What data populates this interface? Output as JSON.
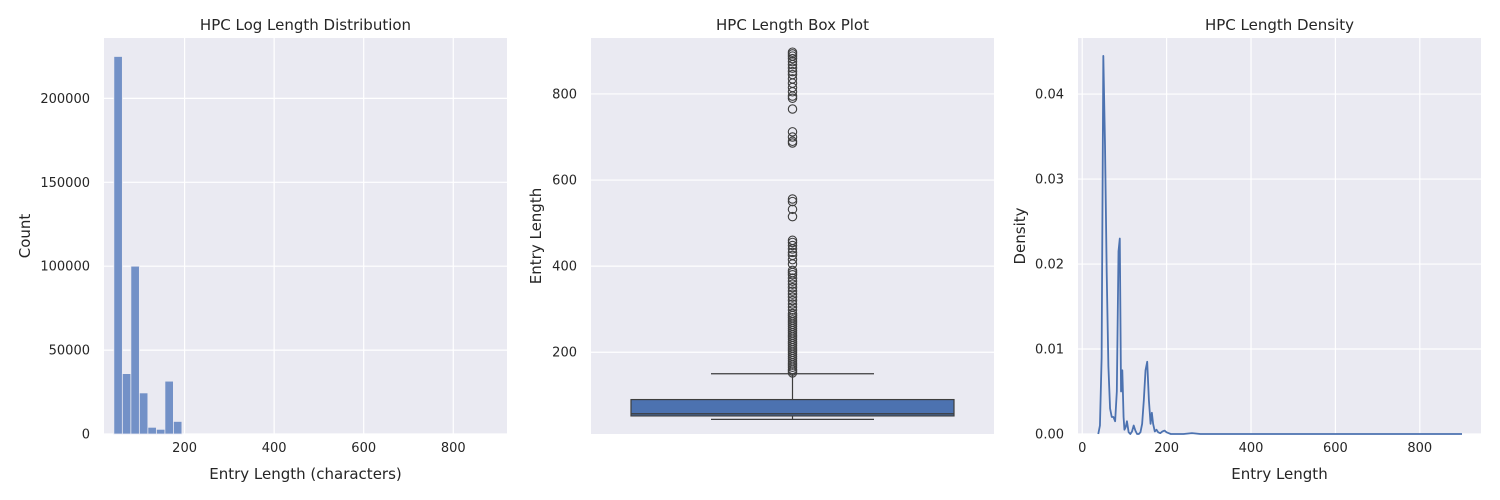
{
  "colors": {
    "figure_bg": "#ffffff",
    "axes_bg": "#eaeaf2",
    "grid": "#ffffff",
    "hist_bar": "#7391c7",
    "box_fill": "#4c72b0",
    "box_line": "#3d3d3d",
    "kde_line": "#4c72b0",
    "text": "#262626"
  },
  "chart_data": [
    {
      "type": "bar",
      "title": "HPC Log Length Distribution",
      "xlabel": "Entry Length (characters)",
      "ylabel": "Count",
      "xlim": [
        20,
        920
      ],
      "ylim": [
        0,
        236000
      ],
      "x_ticks": [
        200,
        400,
        600,
        800
      ],
      "y_ticks": [
        0,
        50000,
        100000,
        150000,
        200000
      ],
      "grid": true,
      "bins": [
        {
          "x0": 42,
          "x1": 61,
          "count": 225000
        },
        {
          "x0": 61,
          "x1": 80,
          "count": 36000
        },
        {
          "x0": 80,
          "x1": 99,
          "count": 100000
        },
        {
          "x0": 99,
          "x1": 118,
          "count": 24500
        },
        {
          "x0": 118,
          "x1": 137,
          "count": 4000
        },
        {
          "x0": 137,
          "x1": 156,
          "count": 2800
        },
        {
          "x0": 156,
          "x1": 175,
          "count": 31500
        },
        {
          "x0": 175,
          "x1": 194,
          "count": 7500
        }
      ]
    },
    {
      "type": "box",
      "title": "HPC Length Box Plot",
      "xlabel": "",
      "ylabel": "Entry Length",
      "ylim": [
        10,
        930
      ],
      "y_ticks": [
        200,
        400,
        600,
        800
      ],
      "grid": true,
      "stats": {
        "whisker_low": 44,
        "q1": 52,
        "median": 57,
        "q3": 90,
        "whisker_high": 150
      },
      "outliers": [
        152,
        156,
        160,
        165,
        170,
        175,
        180,
        185,
        190,
        195,
        200,
        205,
        210,
        215,
        220,
        225,
        230,
        235,
        240,
        245,
        250,
        255,
        260,
        265,
        270,
        275,
        280,
        285,
        290,
        298,
        305,
        312,
        320,
        328,
        335,
        342,
        350,
        358,
        365,
        372,
        380,
        385,
        390,
        405,
        415,
        425,
        432,
        440,
        448,
        455,
        460,
        515,
        532,
        550,
        556,
        686,
        690,
        700,
        712,
        765,
        790,
        795,
        805,
        815,
        825,
        835,
        845,
        852,
        860,
        868,
        875,
        882,
        888,
        893,
        897
      ]
    },
    {
      "type": "line",
      "title": "HPC Length Density",
      "xlabel": "Entry Length",
      "ylabel": "Density",
      "xlim": [
        -10,
        945
      ],
      "ylim": [
        0,
        0.0466
      ],
      "x_ticks": [
        0,
        200,
        400,
        600,
        800
      ],
      "y_ticks": [
        0.0,
        0.01,
        0.02,
        0.03,
        0.04
      ],
      "grid": true,
      "series": [
        {
          "x": [
            38,
            42,
            46,
            50,
            54,
            58,
            62,
            66,
            70,
            74,
            78,
            82,
            86,
            89,
            92,
            95,
            98,
            100,
            103,
            106,
            110,
            114,
            118,
            122,
            126,
            130,
            134,
            138,
            142,
            146,
            150,
            154,
            158,
            162,
            165,
            168,
            172,
            176,
            180,
            185,
            190,
            195,
            200,
            205,
            210,
            220,
            240,
            260,
            280,
            300,
            400,
            500,
            600,
            700,
            800,
            900
          ],
          "y": [
            0.0,
            0.001,
            0.009,
            0.0445,
            0.034,
            0.019,
            0.008,
            0.003,
            0.002,
            0.002,
            0.0015,
            0.005,
            0.0215,
            0.023,
            0.005,
            0.0075,
            0.002,
            0.0005,
            0.0008,
            0.0015,
            0.0002,
            0.0,
            0.0003,
            0.001,
            0.0004,
            0.0,
            0.0,
            0.0002,
            0.0012,
            0.004,
            0.0075,
            0.0085,
            0.004,
            0.0012,
            0.0025,
            0.0012,
            0.0003,
            0.0005,
            0.0002,
            0.0001,
            0.0003,
            0.0004,
            0.0002,
            0.0001,
            0.0,
            0.0,
            0.0,
            0.0001,
            0.0,
            0.0,
            0.0,
            0.0,
            0.0,
            0.0,
            0.0,
            0.0
          ]
        }
      ]
    }
  ]
}
